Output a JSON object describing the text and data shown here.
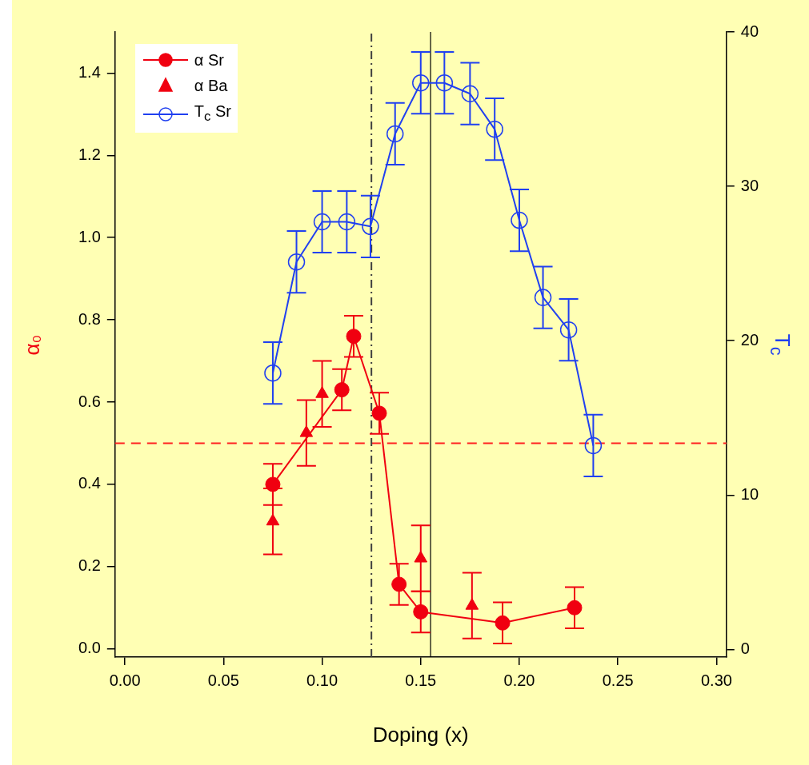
{
  "chart_data": {
    "type": "line",
    "xlabel": "Doping (x)",
    "ylabel": "α₀",
    "y2label": "T$_{c}$",
    "xlim": [
      -0.005,
      0.305
    ],
    "xticks": [
      {
        "value": 0,
        "label": "0.00"
      },
      {
        "value": 0.05,
        "label": "0.05"
      },
      {
        "value": 0.1,
        "label": "0.10"
      },
      {
        "value": 0.15,
        "label": "0.15"
      },
      {
        "value": 0.2,
        "label": "0.20"
      },
      {
        "value": 0.25,
        "label": "0.25"
      },
      {
        "value": 0.3,
        "label": "0.30"
      }
    ],
    "ylim": [
      -0.02,
      1.5
    ],
    "yticks": [
      {
        "value": 0,
        "label": "0.0"
      },
      {
        "value": 0.2,
        "label": "0.2"
      },
      {
        "value": 0.4,
        "label": "0.4"
      },
      {
        "value": 0.6,
        "label": "0.6"
      },
      {
        "value": 0.8,
        "label": "0.8"
      },
      {
        "value": 1,
        "label": "1.0"
      },
      {
        "value": 1.2,
        "label": "1.2"
      },
      {
        "value": 1.4,
        "label": "1.4"
      }
    ],
    "y2lim": [
      -0.5,
      40
    ],
    "y2ticks": [
      0,
      10,
      20,
      30,
      40
    ],
    "legend": "top left",
    "series": [
      {
        "name": "α Sr",
        "marker": "circle",
        "color": "#f00010",
        "x": [
          0.075,
          0.11,
          0.116,
          0.129,
          0.139,
          0.15,
          0.1915,
          0.228
        ],
        "values": [
          0.4,
          0.63,
          0.76,
          0.573,
          0.157,
          0.09,
          0.063,
          0.1
        ],
        "errors": [
          0.05,
          0.05,
          0.05,
          0.05,
          0.05,
          0.05,
          0.05,
          0.05
        ]
      },
      {
        "name": "α Ba",
        "type": "scatter",
        "marker": "triangle",
        "color": "#f00010",
        "x": [
          0.075,
          0.092,
          0.1,
          0.15,
          0.176
        ],
        "values": [
          0.31,
          0.525,
          0.62,
          0.22,
          0.105
        ],
        "errors": [
          0.08,
          0.08,
          0.08,
          0.08,
          0.08
        ]
      },
      {
        "name": "T$_{c}$ Sr",
        "marker": "circle",
        "axis": "y2",
        "color": "#2040f0",
        "x": [
          0.075,
          0.087,
          0.1,
          0.1125,
          0.1245,
          0.137,
          0.15,
          0.162,
          0.175,
          0.1875,
          0.2,
          0.212,
          0.225,
          0.2375
        ],
        "values": [
          17.9,
          25.1,
          27.7,
          27.7,
          27.4,
          33.4,
          36.7,
          36.7,
          36.0,
          33.7,
          27.8,
          22.8,
          20.7,
          13.2
        ],
        "errors": [
          2,
          2,
          2,
          2,
          2,
          2,
          2,
          2,
          2,
          2,
          2,
          2,
          2,
          2
        ]
      }
    ],
    "ref_lines": [
      {
        "axis": "y",
        "value": 0.5,
        "color": "#ff2020",
        "line_style": "dashed"
      },
      {
        "axis": "x",
        "value": 0.125,
        "color": "#404040",
        "line_style": "dashdot"
      },
      {
        "axis": "x",
        "value": 0.155,
        "color": "#000000",
        "line_style": "solid"
      }
    ]
  }
}
